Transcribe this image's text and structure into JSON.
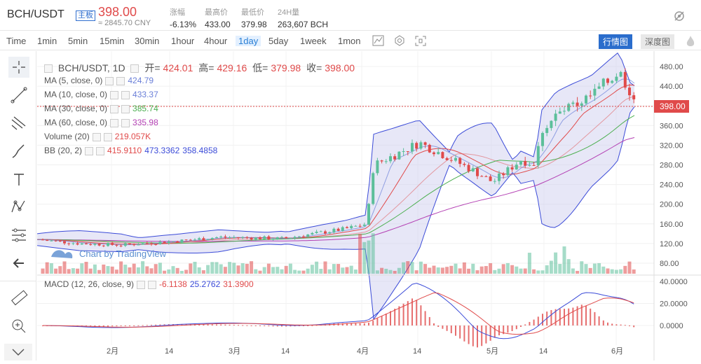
{
  "header": {
    "pair": "BCH/USDT",
    "badge": "主板",
    "price": "398.00",
    "cny": "≈ 2845.70 CNY",
    "stats": [
      {
        "label": "涨幅",
        "value": "-6.13%"
      },
      {
        "label": "最高价",
        "value": "433.00"
      },
      {
        "label": "最低价",
        "value": "379.98"
      },
      {
        "label": "24H量",
        "value": "263,607 BCH"
      }
    ]
  },
  "toolbar": {
    "timeframes": [
      "Time",
      "1min",
      "5min",
      "15min",
      "30min",
      "1hour",
      "4hour",
      "1day",
      "5day",
      "1week",
      "1mon"
    ],
    "active": "1day",
    "tab_line": "行情图",
    "tab_depth": "深度图"
  },
  "legend": {
    "symbol": "BCH/USDT, 1D",
    "open_label": "开=",
    "open": "424.01",
    "high_label": "高=",
    "high": "429.16",
    "low_label": "低=",
    "low": "379.98",
    "close_label": "收=",
    "close": "398.00",
    "ma5": {
      "name": "MA (5, close, 0)",
      "value": "424.79"
    },
    "ma10": {
      "name": "MA (10, close, 0)",
      "value": "433.37"
    },
    "ma30": {
      "name": "MA (30, close, 0)",
      "value": "385.74"
    },
    "ma60": {
      "name": "MA (60, close, 0)",
      "value": "335.98"
    },
    "volume": {
      "name": "Volume (20)",
      "value": "219.057K"
    },
    "bb": {
      "name": "BB (20, 2)",
      "v1": "415.9110",
      "v2": "473.3362",
      "v3": "358.4858"
    },
    "macd": {
      "name": "MACD (12, 26, close, 9)",
      "v1": "-6.1138",
      "v2": "25.2762",
      "v3": "31.3900"
    }
  },
  "watermark": "Chart by TradingView",
  "last_price_tag": "398.00",
  "colors": {
    "up": "#5cbf9a",
    "down": "#e04a4a",
    "bb": "#3b4bd8",
    "ma10": "#e04a4a",
    "ma30": "#4caf50",
    "ma60": "#b33fb3"
  },
  "chart_data": {
    "type": "candlestick",
    "y_ticks": [
      "480.00",
      "440.00",
      "400.00",
      "360.00",
      "320.00",
      "280.00",
      "240.00",
      "200.00",
      "160.00",
      "120.00",
      "80.00"
    ],
    "macd_ticks": [
      "40.0000",
      "20.0000",
      "0.0000"
    ],
    "x_ticks": [
      "2月",
      "14",
      "3月",
      "14",
      "4月",
      "14",
      "5月",
      "14",
      "6月"
    ]
  }
}
